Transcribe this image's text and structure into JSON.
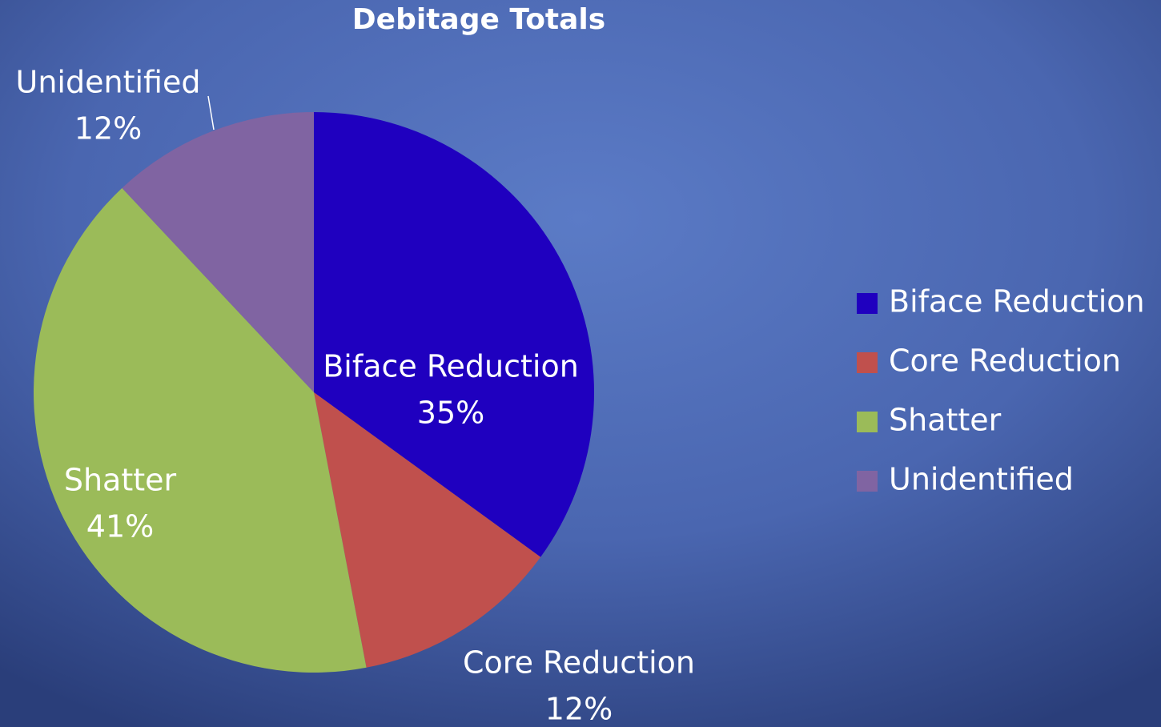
{
  "chart_data": {
    "type": "pie",
    "title": "Debitage Totals",
    "categories": [
      "Biface Reduction",
      "Core Reduction",
      "Shatter",
      "Unidentified"
    ],
    "values": [
      35,
      12,
      41,
      12
    ],
    "value_labels": [
      "35%",
      "12%",
      "41%",
      "12%"
    ],
    "colors": [
      "#1f00bf",
      "#c0504d",
      "#9bbb59",
      "#8064a2"
    ],
    "legend": "right"
  }
}
